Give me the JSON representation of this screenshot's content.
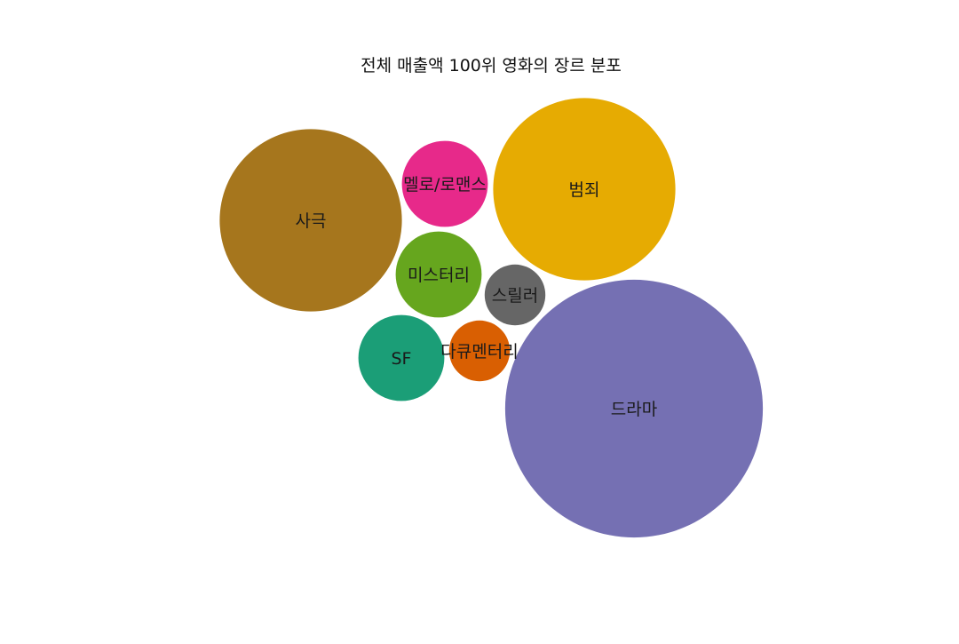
{
  "chart_data": {
    "type": "bubble",
    "title": "전체 매출액 100위 영화의 장르 분포",
    "series": [
      {
        "name": "사극",
        "value": 9,
        "color": "#A6761D"
      },
      {
        "name": "멜로/로맨스",
        "value": 2,
        "color": "#E7298A"
      },
      {
        "name": "범죄",
        "value": 9,
        "color": "#E6AB02"
      },
      {
        "name": "미스터리",
        "value": 2,
        "color": "#66A61E"
      },
      {
        "name": "스릴러",
        "value": 1,
        "color": "#666666"
      },
      {
        "name": "SF",
        "value": 2,
        "color": "#1B9E77"
      },
      {
        "name": "다큐멘터리",
        "value": 1,
        "color": "#D95F02"
      },
      {
        "name": "드라마",
        "value": 18,
        "color": "#7570B3"
      }
    ]
  }
}
